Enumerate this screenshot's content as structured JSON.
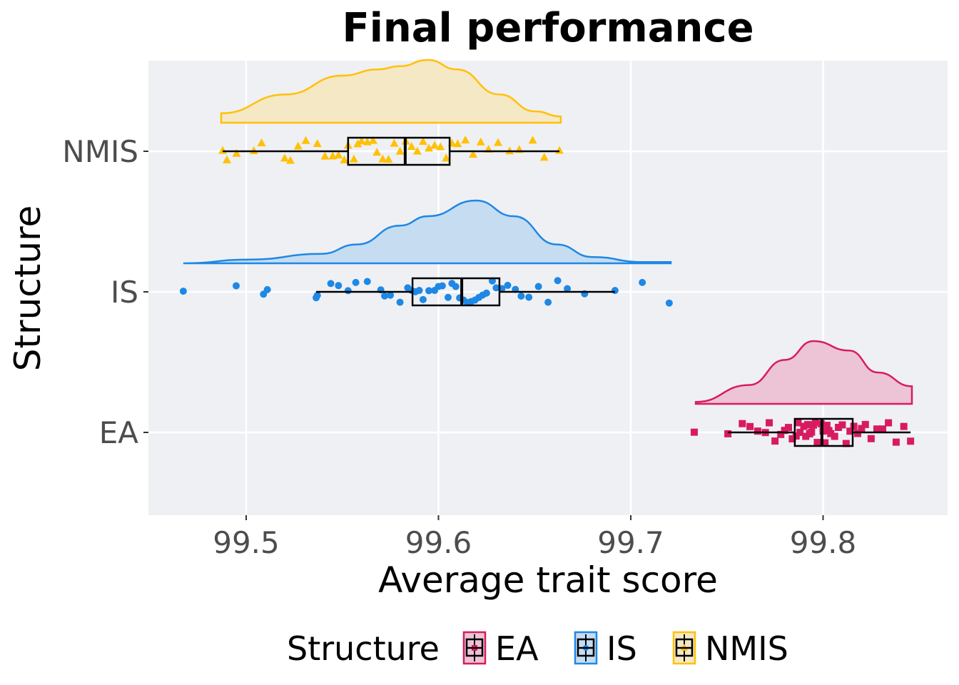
{
  "chart_data": {
    "type": "raincloud",
    "title": "Final performance",
    "xlabel": "Average trait score",
    "ylabel": "Structure",
    "xlim": [
      99.4485,
      99.8655
    ],
    "xticks": [
      "99.5",
      "99.6",
      "99.7",
      "99.8"
    ],
    "xtick_values": [
      99.5,
      99.6,
      99.7,
      99.8
    ],
    "categories": [
      "NMIS",
      "IS",
      "EA"
    ],
    "legend": {
      "title": "Structure",
      "placement": "bottom",
      "entries": [
        "EA",
        "IS",
        "NMIS"
      ]
    },
    "grid": true,
    "series": [
      {
        "name": "EA",
        "color": "#D81B60",
        "fill": "#ECC4D6",
        "marker": "square",
        "box": {
          "whisker_low": 99.7505,
          "q1": 99.7853,
          "median": 99.7994,
          "q3": 99.8154,
          "whisker_high": 99.8455
        },
        "density": {
          "x": [
            99.7338,
            99.7616,
            99.7801,
            99.795,
            99.8135,
            99.8284,
            99.8462
          ],
          "y": [
            0.03,
            0.3,
            0.7,
            1.0,
            0.85,
            0.5,
            0.28
          ]
        },
        "points": [
          99.733,
          99.7505,
          99.758,
          99.762,
          99.766,
          99.77,
          99.772,
          99.775,
          99.778,
          99.78,
          99.782,
          99.784,
          99.786,
          99.787,
          99.788,
          99.79,
          99.791,
          99.792,
          99.793,
          99.794,
          99.795,
          99.796,
          99.797,
          99.798,
          99.799,
          99.8,
          99.801,
          99.802,
          99.803,
          99.804,
          99.806,
          99.808,
          99.81,
          99.812,
          99.814,
          99.816,
          99.818,
          99.82,
          99.822,
          99.825,
          99.828,
          99.831,
          99.834,
          99.838,
          99.842,
          99.8455
        ]
      },
      {
        "name": "IS",
        "color": "#1E88E5",
        "fill": "#C5DCF1",
        "marker": "circle",
        "box": {
          "whisker_low": 99.5364,
          "q1": 99.5865,
          "median": 99.6121,
          "q3": 99.6317,
          "whisker_high": 99.6918
        },
        "density": {
          "x": [
            99.4673,
            99.5019,
            99.539,
            99.5575,
            99.5798,
            99.5946,
            99.6195,
            99.6391,
            99.6614,
            99.68,
            99.706,
            99.7208
          ],
          "y": [
            0.0,
            0.06,
            0.15,
            0.3,
            0.6,
            0.75,
            1.0,
            0.75,
            0.3,
            0.1,
            0.02,
            0.02
          ]
        },
        "points": [
          99.4673,
          99.4948,
          99.509,
          99.511,
          99.5364,
          99.537,
          99.544,
          99.548,
          99.553,
          99.557,
          99.563,
          99.57,
          99.572,
          99.575,
          99.58,
          99.584,
          99.586,
          99.588,
          99.59,
          99.592,
          99.595,
          99.598,
          99.6,
          99.602,
          99.605,
          99.607,
          99.609,
          99.611,
          99.613,
          99.615,
          99.617,
          99.619,
          99.621,
          99.623,
          99.625,
          99.628,
          99.63,
          99.633,
          99.636,
          99.64,
          99.643,
          99.647,
          99.652,
          99.657,
          99.662,
          99.667,
          99.676,
          99.6918,
          99.706,
          99.72
        ]
      },
      {
        "name": "NMIS",
        "color": "#FFC107",
        "fill": "#F5E8C5",
        "marker": "triangle",
        "box": {
          "whisker_low": 99.4878,
          "q1": 99.553,
          "median": 99.5827,
          "q3": 99.6058,
          "whisker_high": 99.6629
        },
        "density": {
          "x": [
            99.487,
            99.5204,
            99.55,
            99.5686,
            99.5798,
            99.5946,
            99.6095,
            99.6317,
            99.6503,
            99.6636
          ],
          "y": [
            0.15,
            0.45,
            0.75,
            0.85,
            0.9,
            1.0,
            0.85,
            0.45,
            0.18,
            0.1
          ]
        },
        "points": [
          99.4878,
          99.49,
          99.495,
          99.504,
          99.508,
          99.52,
          99.523,
          99.527,
          99.531,
          99.537,
          99.541,
          99.545,
          99.548,
          99.551,
          99.553,
          99.556,
          99.558,
          99.56,
          99.563,
          99.566,
          99.568,
          99.571,
          99.574,
          99.577,
          99.58,
          99.583,
          99.586,
          99.589,
          99.592,
          99.595,
          99.598,
          99.601,
          99.604,
          99.607,
          99.61,
          99.614,
          99.618,
          99.622,
          99.626,
          99.631,
          99.637,
          99.642,
          99.649,
          99.655,
          99.6629
        ]
      }
    ]
  }
}
